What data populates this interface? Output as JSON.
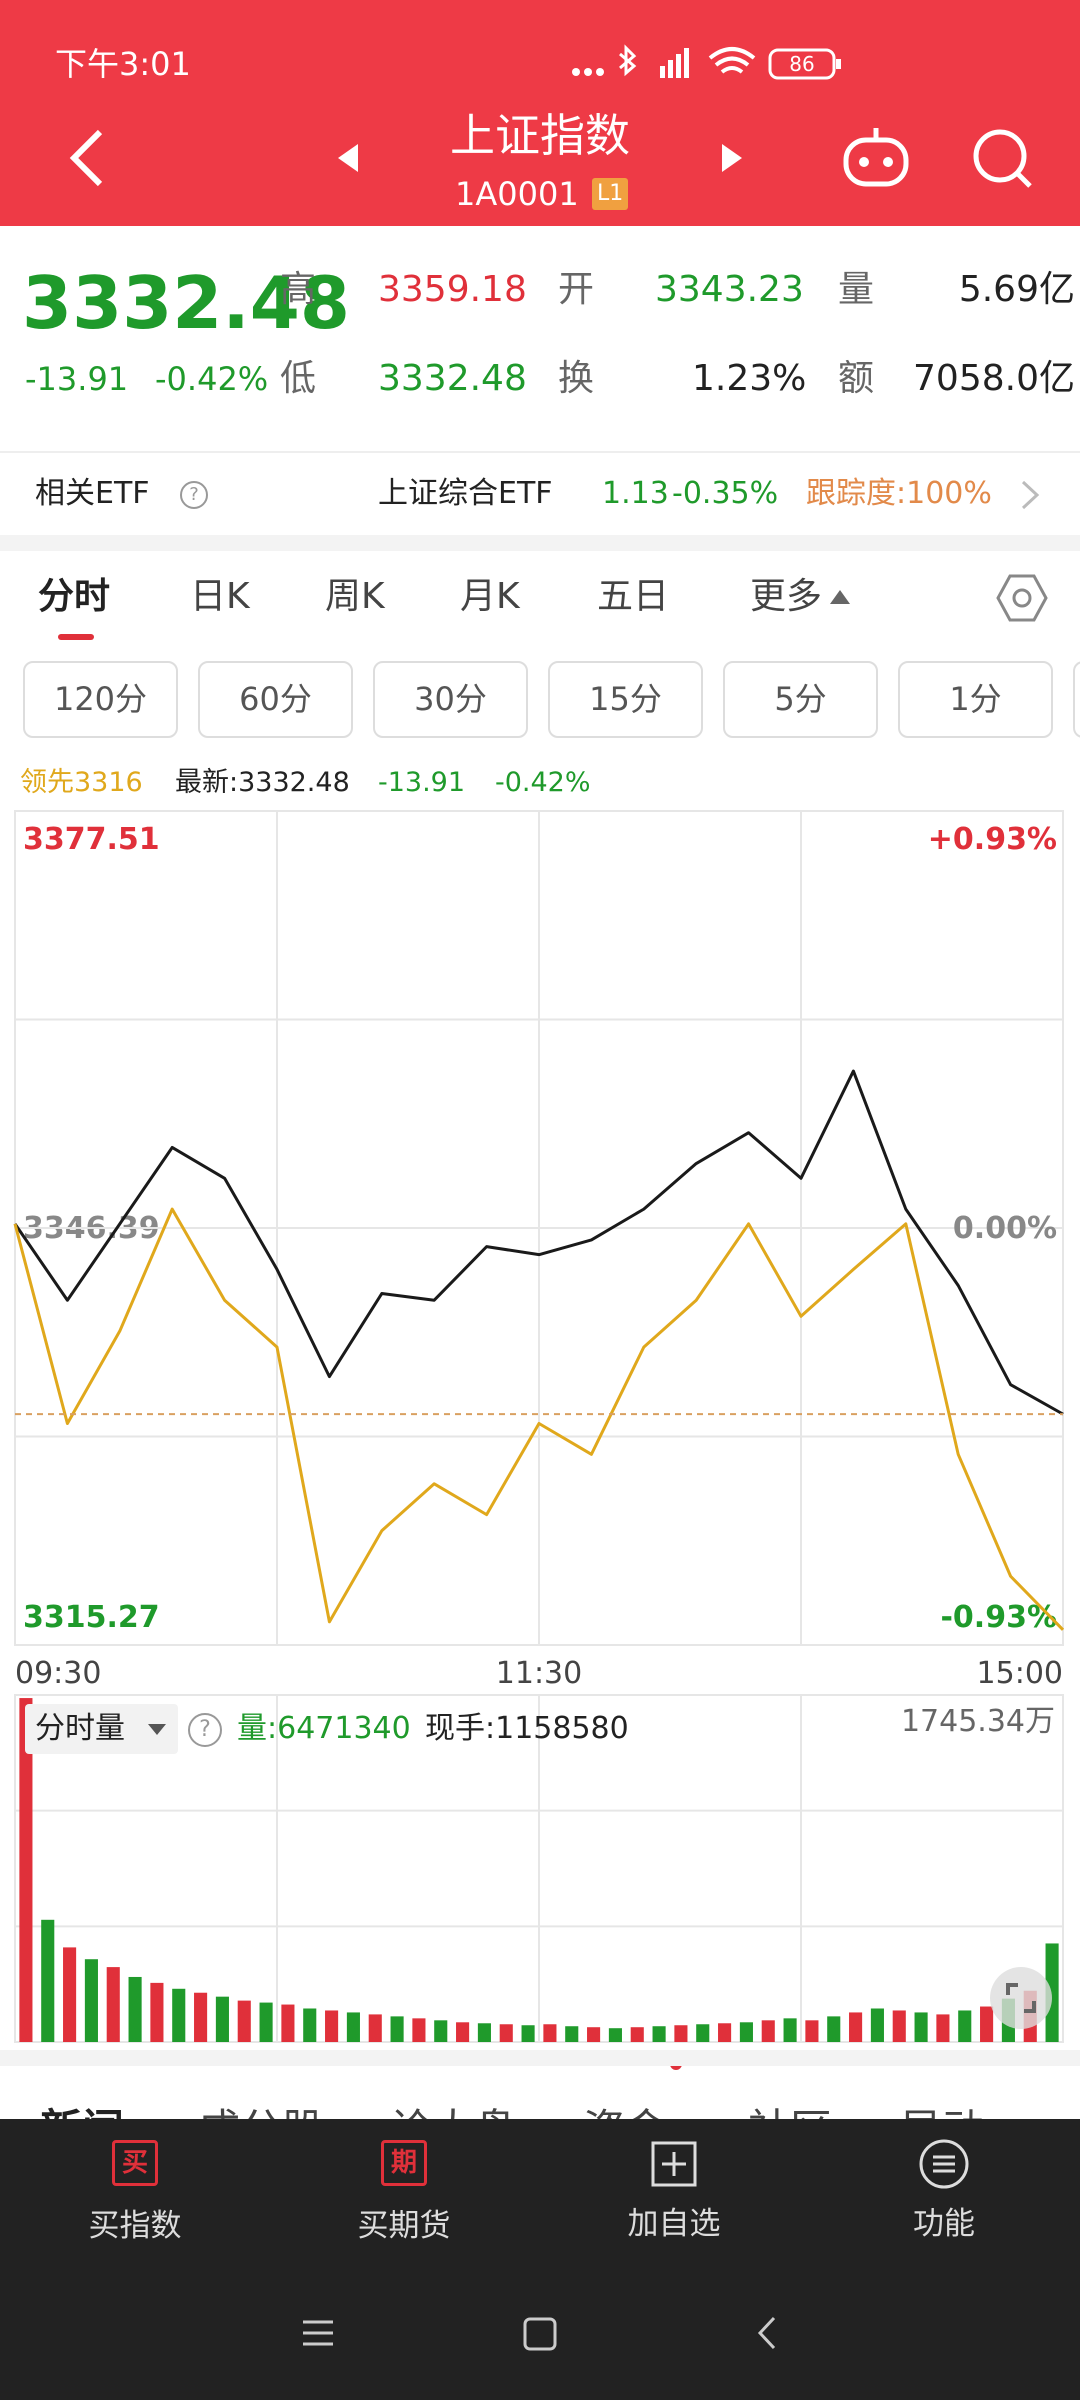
{
  "status_bar": {
    "time": "下午3:01",
    "battery": "86"
  },
  "header": {
    "title": "上证指数",
    "code": "1A0001",
    "level": "L1"
  },
  "quote": {
    "price": "3332.48",
    "change": "-13.91",
    "change_pct": "-0.42%",
    "stats": [
      {
        "label": "高",
        "value": "3359.18"
      },
      {
        "label": "开",
        "value": "3343.23"
      },
      {
        "label": "量",
        "value": "5.69亿"
      },
      {
        "label": "低",
        "value": "3332.48"
      },
      {
        "label": "换",
        "value": "1.23%"
      },
      {
        "label": "额",
        "value": "7058.0亿"
      }
    ]
  },
  "etf": {
    "label": "相关ETF",
    "name": "上证综合ETF",
    "price": "1.13",
    "change": "-0.35%",
    "tracking": "跟踪度:100%"
  },
  "tabs": [
    "分时",
    "日K",
    "周K",
    "月K",
    "五日",
    "更多"
  ],
  "intervals": [
    "120分",
    "60分",
    "30分",
    "15分",
    "5分",
    "1分"
  ],
  "legend": {
    "lead": "领先3316",
    "latest": "最新:3332.48",
    "change": "-13.91",
    "change_pct": "-0.42%"
  },
  "chart_data": {
    "type": "line",
    "x": [
      0,
      12,
      24,
      36,
      48,
      60,
      72,
      84,
      96,
      108,
      120,
      132,
      144,
      156,
      168,
      180,
      192,
      204,
      216,
      228,
      240
    ],
    "xlim": [
      0,
      240
    ],
    "xticks": [
      {
        "value": 0,
        "label": "09:30"
      },
      {
        "value": 120,
        "label": "11:30"
      },
      {
        "value": 240,
        "label": "15:00"
      }
    ],
    "ylim": [
      3315.27,
      3377.51
    ],
    "yticks": [
      3315.27,
      3346.39,
      3377.51
    ],
    "y2lim": [
      -0.93,
      0.93
    ],
    "y2ticks": [
      {
        "value": -0.93,
        "label": "-0.93%"
      },
      {
        "value": 0,
        "label": "0.00%"
      },
      {
        "value": 0.93,
        "label": "+0.93%"
      }
    ],
    "up_color": "#e0303a",
    "down_color": "#1f9a2b",
    "flat_color": "#888888",
    "series": [
      {
        "color": "#1a1a1a",
        "values": [
          3346.7,
          3341.0,
          3346.7,
          3352.4,
          3350.1,
          3343.3,
          3335.3,
          3341.5,
          3341.0,
          3345.0,
          3344.4,
          3345.5,
          3347.8,
          3351.2,
          3353.5,
          3350.1,
          3358.1,
          3347.8,
          3342.1,
          3334.7,
          3332.5
        ]
      },
      {
        "color": "#e0a81c",
        "values": [
          3346.7,
          3331.8,
          3338.7,
          3347.8,
          3341.0,
          3337.5,
          3317.0,
          3323.8,
          3327.3,
          3325.0,
          3331.8,
          3329.5,
          3337.5,
          3341.0,
          3346.7,
          3339.8,
          3343.3,
          3346.7,
          3329.5,
          3320.4,
          3316.4
        ]
      }
    ],
    "volume": {
      "ylim": [
        0,
        1745.34
      ],
      "colors": [
        "#e0303a",
        "#1f9a2b"
      ],
      "values": [
        1745,
        620,
        480,
        420,
        380,
        330,
        300,
        270,
        250,
        230,
        210,
        200,
        190,
        170,
        160,
        150,
        140,
        130,
        120,
        110,
        100,
        95,
        90,
        85,
        90,
        80,
        75,
        70,
        75,
        80,
        85,
        90,
        95,
        100,
        110,
        120,
        110,
        130,
        150,
        170,
        160,
        150,
        140,
        160,
        180,
        220,
        260,
        500
      ]
    }
  },
  "volume_panel": {
    "label": "分时量",
    "volume": "量:6471340",
    "current": "现手:1158580",
    "max": "1745.34万"
  },
  "news_tabs": [
    "新闻",
    "成分股",
    "诊大盘",
    "资金",
    "社区",
    "异动"
  ],
  "nav": [
    {
      "icon": "买",
      "label": "买指数"
    },
    {
      "icon": "期",
      "label": "买期货"
    },
    {
      "label": "加自选"
    },
    {
      "label": "功能"
    }
  ]
}
